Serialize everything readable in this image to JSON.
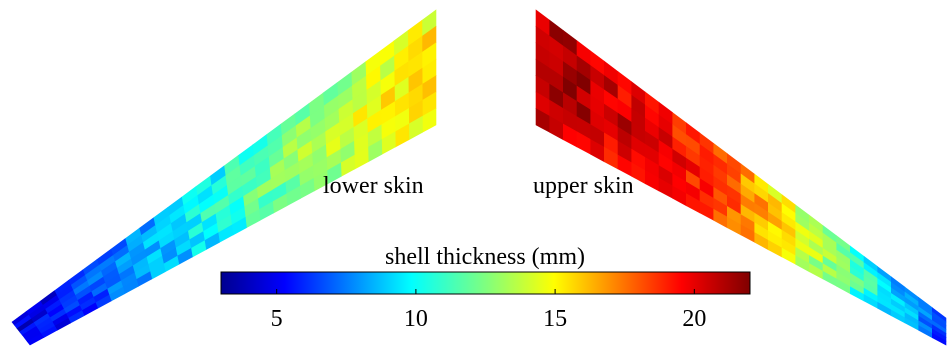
{
  "figure": {
    "labels": {
      "lower_skin": "lower skin",
      "upper_skin": "upper skin"
    }
  },
  "colorbar": {
    "title": "shell thickness (mm)",
    "range": [
      3,
      22
    ],
    "ticks": [
      {
        "value": 5,
        "label": "5"
      },
      {
        "value": 10,
        "label": "10"
      },
      {
        "value": 15,
        "label": "15"
      },
      {
        "value": 20,
        "label": "20"
      }
    ],
    "colormap": "jet"
  },
  "panels": [
    {
      "name": "lower skin",
      "thickness_mm": {
        "tip": 4,
        "mid": 11,
        "root": 15
      }
    },
    {
      "name": "upper skin",
      "thickness_mm": {
        "tip": 6,
        "mid": 18,
        "root": 21
      }
    }
  ]
}
